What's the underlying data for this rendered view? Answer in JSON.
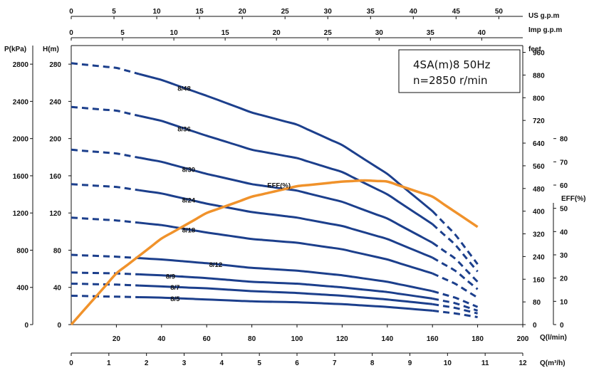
{
  "chart_data": {
    "type": "line",
    "title_lines": [
      "4SA(m)8 50Hz",
      "n=2850 r/min"
    ],
    "x_axis": {
      "label": "Q(l/min)",
      "range": [
        0,
        200
      ],
      "ticks": [
        20,
        40,
        60,
        80,
        100,
        120,
        140,
        160,
        180,
        200
      ]
    },
    "x_axis_m3h": {
      "label": "Q(m³/h)",
      "range": [
        0,
        12
      ],
      "ticks": [
        0,
        1,
        2,
        3,
        4,
        5,
        6,
        7,
        8,
        9,
        10,
        11,
        12
      ]
    },
    "x_axis_us_gpm": {
      "label": "US g.p.m",
      "range": [
        0,
        52.8
      ],
      "ticks": [
        0,
        5,
        10,
        15,
        20,
        25,
        30,
        35,
        40,
        45,
        50
      ]
    },
    "x_axis_imp_gpm": {
      "label": "Imp g.p.m",
      "range": [
        0,
        44
      ],
      "ticks": [
        0,
        5,
        10,
        15,
        20,
        25,
        30,
        35,
        40
      ]
    },
    "y_axis_head": {
      "label": "H(m)",
      "range": [
        0,
        300
      ],
      "ticks": [
        0,
        40,
        80,
        120,
        160,
        200,
        240,
        280
      ]
    },
    "y_axis_pressure": {
      "label": "P(kPa)",
      "range": [
        0,
        3000
      ],
      "ticks": [
        0,
        400,
        800,
        1200,
        1600,
        2000,
        2400,
        2800
      ]
    },
    "y_axis_feet": {
      "label": "feet",
      "range": [
        0,
        984
      ],
      "ticks": [
        0,
        80,
        160,
        240,
        320,
        400,
        480,
        560,
        640,
        720,
        800,
        880,
        960
      ]
    },
    "y_axis_eff": {
      "label": "EFF(%)",
      "range": [
        0,
        120
      ],
      "ticks": [
        0,
        10,
        20,
        30,
        40,
        50,
        60,
        70,
        80
      ]
    },
    "dashed_ranges": [
      [
        0,
        30
      ],
      [
        160,
        180
      ]
    ],
    "series": [
      {
        "name": "8/48",
        "x": [
          0,
          20,
          40,
          60,
          80,
          100,
          120,
          140,
          160,
          170,
          180
        ],
        "y": [
          281,
          276,
          263,
          246,
          228,
          215,
          193,
          162,
          122,
          97,
          65
        ]
      },
      {
        "name": "8/36",
        "x": [
          0,
          20,
          40,
          60,
          80,
          100,
          120,
          140,
          160,
          170,
          180
        ],
        "y": [
          234,
          230,
          219,
          203,
          188,
          179,
          164,
          140,
          108,
          86,
          57
        ]
      },
      {
        "name": "8/30",
        "x": [
          0,
          20,
          40,
          60,
          80,
          100,
          120,
          140,
          160,
          170,
          180
        ],
        "y": [
          188,
          184,
          175,
          162,
          151,
          144,
          132,
          114,
          88,
          71,
          46
        ]
      },
      {
        "name": "8/24",
        "x": [
          0,
          20,
          40,
          60,
          80,
          100,
          120,
          140,
          160,
          170,
          180
        ],
        "y": [
          151,
          148,
          141,
          130,
          121,
          115,
          106,
          92,
          72,
          58,
          38
        ]
      },
      {
        "name": "8/18",
        "x": [
          0,
          20,
          40,
          60,
          80,
          100,
          120,
          140,
          160,
          170,
          180
        ],
        "y": [
          115,
          112,
          107,
          99,
          92,
          88,
          81,
          70,
          55,
          44,
          29
        ]
      },
      {
        "name": "8/12",
        "x": [
          0,
          20,
          40,
          60,
          80,
          100,
          120,
          140,
          160,
          170,
          180
        ],
        "y": [
          75,
          73,
          70,
          66,
          61,
          58,
          53,
          46,
          36,
          29,
          19
        ]
      },
      {
        "name": "8/9",
        "x": [
          0,
          20,
          40,
          60,
          80,
          100,
          120,
          140,
          160,
          170,
          180
        ],
        "y": [
          56,
          55,
          53,
          50,
          46,
          44,
          40,
          35,
          28,
          23,
          15
        ]
      },
      {
        "name": "8/7",
        "x": [
          0,
          20,
          40,
          60,
          80,
          100,
          120,
          140,
          160,
          170,
          180
        ],
        "y": [
          44,
          43,
          41,
          39,
          36,
          34,
          31,
          27,
          22,
          18,
          12
        ]
      },
      {
        "name": "8/5",
        "x": [
          0,
          20,
          40,
          60,
          80,
          100,
          120,
          140,
          160,
          170,
          180
        ],
        "y": [
          31,
          30,
          29,
          27,
          25,
          24,
          22,
          19,
          15,
          12,
          8
        ]
      }
    ],
    "efficiency": {
      "name": "EFF(%)",
      "x": [
        0,
        20,
        40,
        60,
        80,
        100,
        120,
        130,
        140,
        160,
        180
      ],
      "y": [
        0,
        22,
        37,
        48,
        55,
        59.5,
        61.5,
        62,
        61.5,
        55,
        42
      ]
    },
    "colors": {
      "head_curves": "#1c3f8c",
      "efficiency": "#f0922b",
      "axes": "#111111"
    },
    "grid": false,
    "legend": "none"
  }
}
